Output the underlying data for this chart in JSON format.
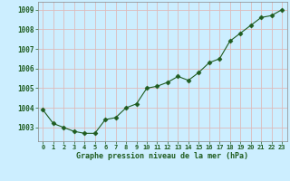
{
  "x": [
    0,
    1,
    2,
    3,
    4,
    5,
    6,
    7,
    8,
    9,
    10,
    11,
    12,
    13,
    14,
    15,
    16,
    17,
    18,
    19,
    20,
    21,
    22,
    23
  ],
  "y": [
    1003.9,
    1003.2,
    1003.0,
    1002.8,
    1002.7,
    1002.7,
    1003.4,
    1003.5,
    1004.0,
    1004.2,
    1005.0,
    1005.1,
    1005.3,
    1005.6,
    1005.4,
    1005.8,
    1006.3,
    1006.5,
    1007.4,
    1007.8,
    1008.2,
    1008.6,
    1008.7,
    1009.0
  ],
  "line_color": "#1f5c1f",
  "marker": "D",
  "marker_size": 2.5,
  "bg_color": "#cceeff",
  "grid_color": "#ddbbbb",
  "xlabel": "Graphe pression niveau de la mer (hPa)",
  "xlabel_color": "#1f5c1f",
  "tick_label_color": "#1f5c1f",
  "ylim": [
    1002.3,
    1009.4
  ],
  "yticks": [
    1003,
    1004,
    1005,
    1006,
    1007,
    1008,
    1009
  ],
  "xlim": [
    -0.5,
    23.5
  ],
  "xticks": [
    0,
    1,
    2,
    3,
    4,
    5,
    6,
    7,
    8,
    9,
    10,
    11,
    12,
    13,
    14,
    15,
    16,
    17,
    18,
    19,
    20,
    21,
    22,
    23
  ]
}
